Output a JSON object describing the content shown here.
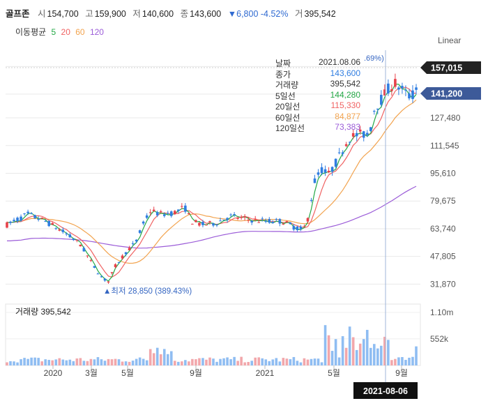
{
  "header": {
    "name": "골프존",
    "open_label": "시",
    "open": "154,700",
    "high_label": "고",
    "high": "159,900",
    "low_label": "저",
    "low": "140,600",
    "close_label": "종",
    "close": "143,600",
    "change": "▼6,800 -4.52%",
    "volume_label": "거",
    "volume": "395,542"
  },
  "ma_legend": {
    "title": "이동평균",
    "periods": [
      {
        "label": "5",
        "color": "#23a845"
      },
      {
        "label": "20",
        "color": "#f06262"
      },
      {
        "label": "60",
        "color": "#f2a34e"
      },
      {
        "label": "120",
        "color": "#9b5cd8"
      }
    ]
  },
  "scale_label": "Linear",
  "tooltip": {
    "rows": [
      {
        "label": "날짜",
        "value": "2021.08.06",
        "color": "#333333"
      },
      {
        "label": "종가",
        "value": "143,600",
        "color": "#2f7de1"
      },
      {
        "label": "거래량",
        "value": "395,542",
        "color": "#333333"
      },
      {
        "label": "5일선",
        "value": "144,280",
        "color": "#23a845"
      },
      {
        "label": "20일선",
        "value": "115,330",
        "color": "#f06262"
      },
      {
        "label": "60일선",
        "value": "84,877",
        "color": "#f2a34e"
      },
      {
        "label": "120일선",
        "value": "73,383",
        "color": "#9b5cd8"
      }
    ]
  },
  "markers": {
    "high_pct": ".69%)",
    "low_label": "최저 28,850 (389.43%)"
  },
  "volume_panel": {
    "label": "거래량 395,542",
    "ticks": [
      "1.10m",
      "552k"
    ]
  },
  "crosshair_date": "2021-08-06",
  "chart_data": {
    "type": "candlestick",
    "price_ticks": [
      157015,
      141200,
      127480,
      111545,
      95610,
      79675,
      63740,
      47805,
      31870
    ],
    "price_tick_labels": [
      "157,015",
      "141,200",
      "127,480",
      "111,545",
      "95,610",
      "79,675",
      "63,740",
      "47,805",
      "31,870"
    ],
    "highlighted_ticks": [
      {
        "value": 157015,
        "label": "157,015",
        "color": "#222222"
      },
      {
        "value": 141200,
        "label": "141,200",
        "color": "#3d5a99"
      }
    ],
    "x_tick_labels": [
      "2020",
      "3월",
      "5월",
      "9월",
      "2021",
      "5월",
      "9월"
    ],
    "price_range": [
      22000,
      166000
    ],
    "volume_range": [
      0,
      1100000
    ],
    "all_time_low": 28850,
    "last_close": 143600,
    "last_volume": 395542,
    "ma_last": {
      "ma5": 144280,
      "ma20": 115330,
      "ma60": 84877,
      "ma120": 73383
    }
  }
}
